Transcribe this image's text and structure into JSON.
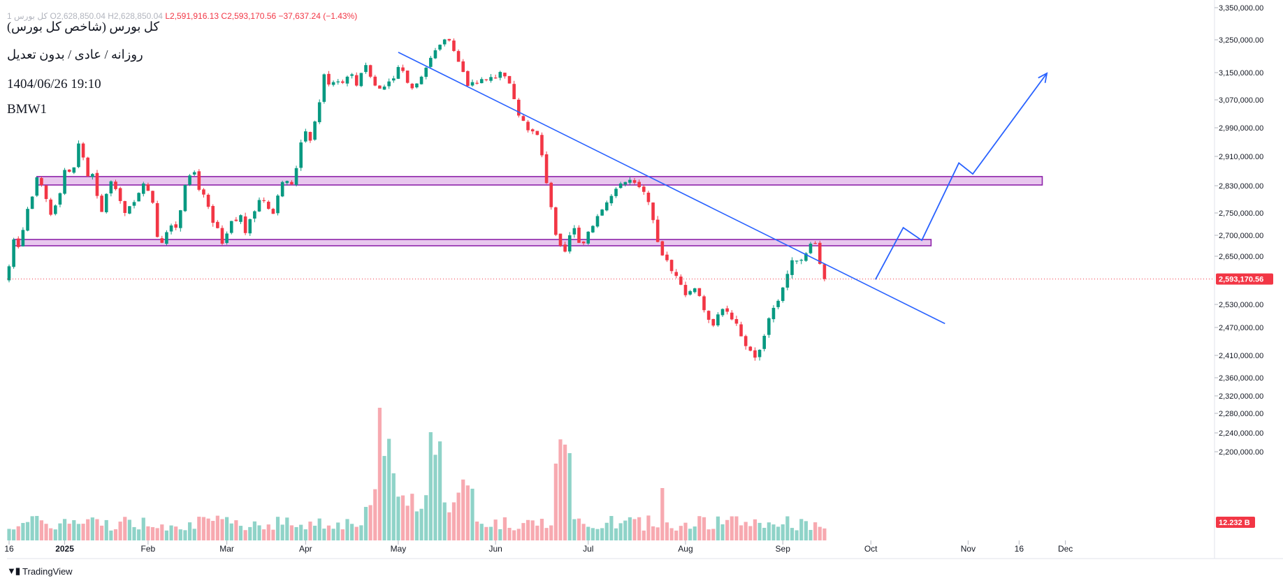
{
  "header": {
    "ohlc_prefix": "کل بورس 1",
    "open": "O2,628,850.04",
    "high": "H2,628,850.04",
    "low": "L2,591,916.13",
    "close": "C2,593,170.56",
    "change": "−37,637.24 (−1.43%)"
  },
  "overlay": {
    "line1": "کل بورس (شاخص کل بورس)",
    "line2": "روزانه / عادی / بدون تعدیل",
    "line3": "1404/06/26 19:10",
    "line4": "BMW1"
  },
  "branding": {
    "text": "TradingView",
    "logo_icon": "tradingview-logo-icon"
  },
  "colors": {
    "up": "#089981",
    "down": "#f23645",
    "vol_up": "#8fd3c8",
    "vol_down": "#f7a9b0",
    "zone_fill": "#e8c7ee",
    "zone_stroke": "#8e24aa",
    "trend": "#2962ff",
    "projection": "#2962ff",
    "price_tag": "#f23645",
    "volume_tag": "#f23645"
  },
  "chart_data": {
    "type": "candlestick",
    "y_axis_ticks": [
      3350000,
      3250000,
      3150000,
      3070000,
      2990000,
      2910000,
      2830000,
      2750000,
      2700000,
      2650000,
      2530000,
      2470000,
      2410000,
      2360000,
      2320000,
      2280000,
      2240000,
      2200000
    ],
    "y_axis_labels": [
      "3,350,000.00",
      "3,250,000.00",
      "3,150,000.00",
      "3,070,000.00",
      "2,990,000.00",
      "2,910,000.00",
      "2,830,000.00",
      "2,750,000.00",
      "2,700,000.00",
      "2,650,000.00",
      "2,530,000.00",
      "2,470,000.00",
      "2,410,000.00",
      "2,360,000.00",
      "2,320,000.00",
      "2,280,000.00",
      "2,240,000.00",
      "2,200,000.00"
    ],
    "x_axis_labels": [
      {
        "label": "16",
        "bar": 0
      },
      {
        "label": "2025",
        "bar": 12
      },
      {
        "label": "Feb",
        "bar": 30
      },
      {
        "label": "Mar",
        "bar": 47
      },
      {
        "label": "Apr",
        "bar": 64
      },
      {
        "label": "May",
        "bar": 84
      },
      {
        "label": "Jun",
        "bar": 105
      },
      {
        "label": "Jul",
        "bar": 125
      },
      {
        "label": "Aug",
        "bar": 146
      },
      {
        "label": "Sep",
        "bar": 167
      },
      {
        "label": "Oct",
        "bar": 186
      },
      {
        "label": "Nov",
        "bar": 207
      },
      {
        "label": "16",
        "bar": 218
      },
      {
        "label": "Dec",
        "bar": 228
      }
    ],
    "last_price": 2593170.56,
    "last_price_label": "2,593,170.56",
    "last_volume_label": "12.232 B",
    "closes": [
      2625000,
      2690000,
      2672000,
      2712000,
      2762000,
      2798000,
      2853000,
      2832000,
      2791000,
      2746000,
      2772000,
      2808000,
      2873000,
      2868000,
      2880000,
      2946000,
      2907000,
      2856000,
      2862000,
      2800000,
      2753000,
      2806000,
      2842000,
      2820000,
      2785000,
      2750000,
      2770000,
      2782000,
      2809000,
      2836000,
      2815000,
      2780000,
      2696000,
      2682000,
      2707000,
      2722000,
      2717000,
      2758000,
      2832000,
      2858000,
      2867000,
      2818000,
      2804000,
      2768000,
      2728000,
      2716000,
      2680000,
      2704000,
      2732000,
      2732000,
      2745000,
      2705000,
      2736000,
      2755000,
      2788000,
      2785000,
      2762000,
      2748000,
      2801000,
      2840000,
      2843000,
      2834000,
      2878000,
      2949000,
      2980000,
      2954000,
      3008000,
      3063000,
      3145000,
      3115000,
      3122000,
      3124000,
      3120000,
      3138000,
      3145000,
      3112000,
      3149000,
      3173000,
      3138000,
      3112000,
      3103000,
      3109000,
      3124000,
      3133000,
      3167000,
      3155000,
      3120000,
      3104000,
      3118000,
      3138000,
      3165000,
      3195000,
      3218000,
      3235000,
      3251000,
      3248000,
      3216000,
      3183000,
      3152000,
      3111000,
      3122000,
      3120000,
      3131000,
      3129000,
      3137000,
      3134000,
      3152000,
      3139000,
      3118000,
      3072000,
      3025000,
      3010000,
      2983000,
      2980000,
      2970000,
      2913000,
      2837000,
      2767000,
      2701000,
      2675000,
      2661000,
      2700000,
      2716000,
      2682000,
      2681000,
      2708000,
      2721000,
      2743000,
      2760000,
      2781000,
      2800000,
      2821000,
      2836000,
      2840000,
      2846000,
      2838000,
      2826000,
      2812000,
      2782000,
      2734000,
      2684000,
      2652000,
      2640000,
      2613000,
      2601000,
      2579000,
      2553000,
      2563000,
      2570000,
      2551000,
      2515000,
      2490000,
      2475000,
      2504000,
      2518000,
      2511000,
      2491000,
      2480000,
      2451000,
      2430000,
      2420000,
      2405000,
      2422000,
      2452000,
      2494000,
      2521000,
      2539000,
      2572000,
      2606000,
      2640000,
      2639000,
      2641000,
      2657000,
      2680000,
      2681000,
      2631000,
      2593170
    ]
  },
  "zones": [
    {
      "from_bar": 6,
      "to_bar": 223,
      "top": 2855000,
      "bottom": 2832000
    },
    {
      "from_bar": 1,
      "to_bar": 199,
      "top": 2690000,
      "bottom": 2675000
    }
  ],
  "trendline": {
    "from_bar": 84,
    "from_value": 3212000,
    "to_bar": 202,
    "to_value": 2480000
  },
  "projection": {
    "points": [
      [
        187,
        2592000
      ],
      [
        193,
        2717000
      ],
      [
        197,
        2688000
      ],
      [
        205,
        2892000
      ],
      [
        208,
        2862000
      ],
      [
        224,
        3148000
      ]
    ]
  }
}
